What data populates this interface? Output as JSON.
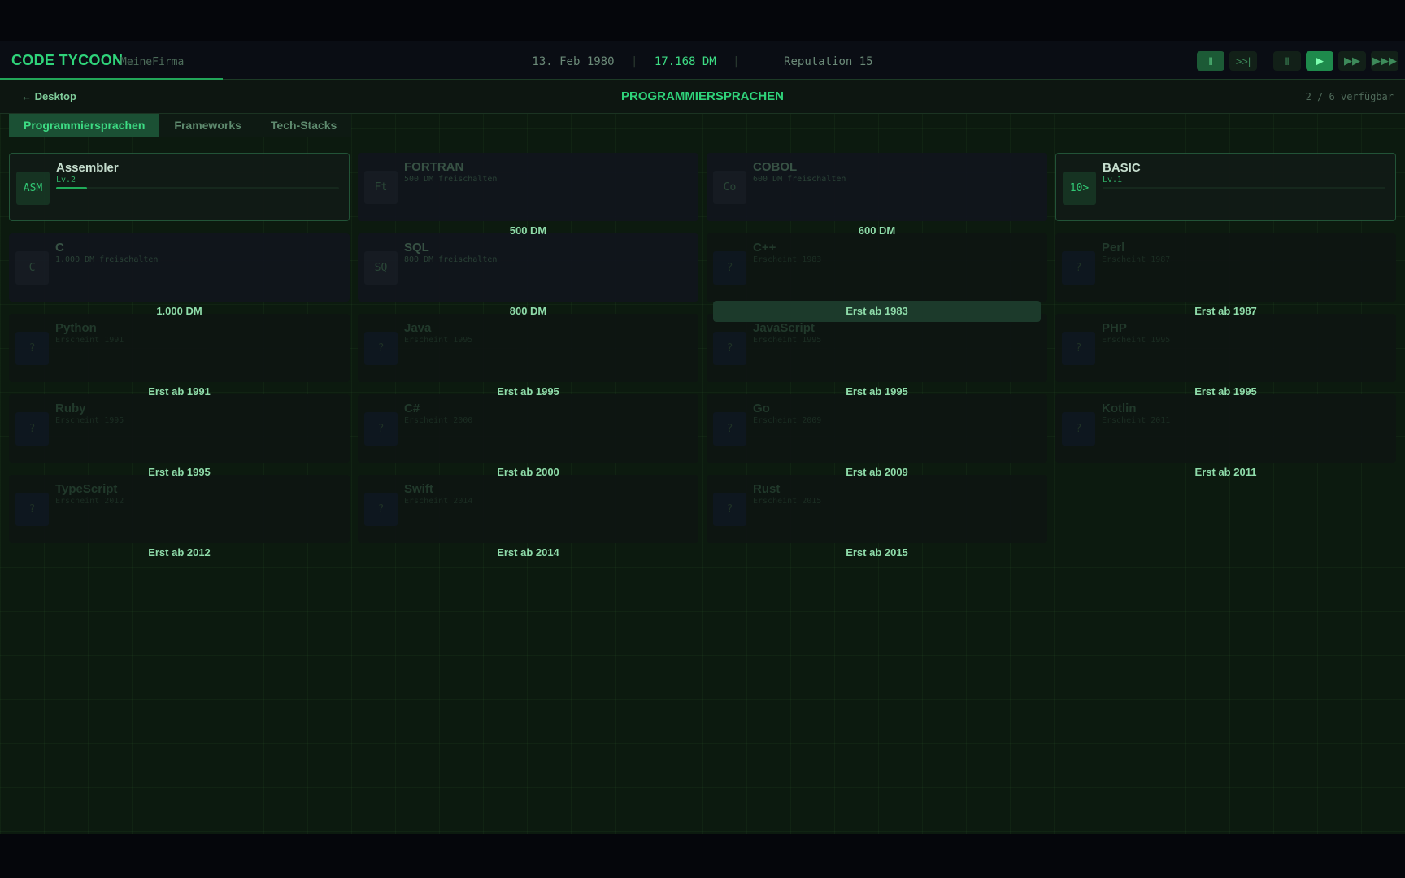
{
  "header": {
    "logo": "CODE TYCOON",
    "company": "MeineFirma",
    "date": "13. Feb 1980",
    "separator": "|",
    "money": "17.168 DM",
    "reputation": "Reputation 15",
    "controls": [
      {
        "icon": "pause-icon",
        "label": "‖",
        "active": true
      },
      {
        "icon": "skip-icon",
        "label": ">>|",
        "active": false
      },
      {
        "icon": "pause-icon",
        "label": "‖",
        "active": false
      },
      {
        "icon": "play-icon",
        "label": "▶",
        "active": true
      },
      {
        "icon": "fast-forward-icon",
        "label": "▶▶",
        "active": false
      },
      {
        "icon": "fastest-forward-icon",
        "label": "▶▶▶",
        "active": false
      }
    ]
  },
  "subheader": {
    "back": "← Desktop",
    "title": "PROGRAMMIERSPRACHEN",
    "available": "2 / 6 verfügbar"
  },
  "tabs": [
    {
      "label": "Programmiersprachen",
      "active": true
    },
    {
      "label": "Frameworks",
      "active": false
    },
    {
      "label": "Tech-Stacks",
      "active": false
    }
  ],
  "languages": [
    {
      "name": "Assembler",
      "icon": "ASM",
      "state": "unlocked",
      "sub": "Lv.2",
      "progress": 0.11,
      "label": ""
    },
    {
      "name": "FORTRAN",
      "icon": "Ft",
      "state": "buy",
      "sub": "500 DM freischalten",
      "label": "500 DM"
    },
    {
      "name": "COBOL",
      "icon": "Co",
      "state": "buy",
      "sub": "600 DM freischalten",
      "label": "600 DM"
    },
    {
      "name": "BASIC",
      "icon": "10>",
      "state": "unlocked",
      "sub": "Lv.1",
      "progress": 0,
      "label": ""
    },
    {
      "name": "C",
      "icon": "C",
      "state": "buy",
      "sub": "1.000 DM freischalten",
      "label": "1.000 DM"
    },
    {
      "name": "SQL",
      "icon": "SQ",
      "state": "buy",
      "sub": "800 DM freischalten",
      "label": "800 DM"
    },
    {
      "name": "C++",
      "icon": "?",
      "state": "future",
      "sub": "Erscheint 1983",
      "label": "Erst ab 1983",
      "highlight": true
    },
    {
      "name": "Perl",
      "icon": "?",
      "state": "future",
      "sub": "Erscheint 1987",
      "label": "Erst ab 1987"
    },
    {
      "name": "Python",
      "icon": "?",
      "state": "future",
      "sub": "Erscheint 1991",
      "label": "Erst ab 1991"
    },
    {
      "name": "Java",
      "icon": "?",
      "state": "future",
      "sub": "Erscheint 1995",
      "label": "Erst ab 1995"
    },
    {
      "name": "JavaScript",
      "icon": "?",
      "state": "future",
      "sub": "Erscheint 1995",
      "label": "Erst ab 1995"
    },
    {
      "name": "PHP",
      "icon": "?",
      "state": "future",
      "sub": "Erscheint 1995",
      "label": "Erst ab 1995"
    },
    {
      "name": "Ruby",
      "icon": "?",
      "state": "future",
      "sub": "Erscheint 1995",
      "label": "Erst ab 1995"
    },
    {
      "name": "C#",
      "icon": "?",
      "state": "future",
      "sub": "Erscheint 2000",
      "label": "Erst ab 2000"
    },
    {
      "name": "Go",
      "icon": "?",
      "state": "future",
      "sub": "Erscheint 2009",
      "label": "Erst ab 2009"
    },
    {
      "name": "Kotlin",
      "icon": "?",
      "state": "future",
      "sub": "Erscheint 2011",
      "label": "Erst ab 2011"
    },
    {
      "name": "TypeScript",
      "icon": "?",
      "state": "future",
      "sub": "Erscheint 2012",
      "label": "Erst ab 2012"
    },
    {
      "name": "Swift",
      "icon": "?",
      "state": "future",
      "sub": "Erscheint 2014",
      "label": "Erst ab 2014"
    },
    {
      "name": "Rust",
      "icon": "?",
      "state": "future",
      "sub": "Erscheint 2015",
      "label": "Erst ab 2015"
    }
  ]
}
